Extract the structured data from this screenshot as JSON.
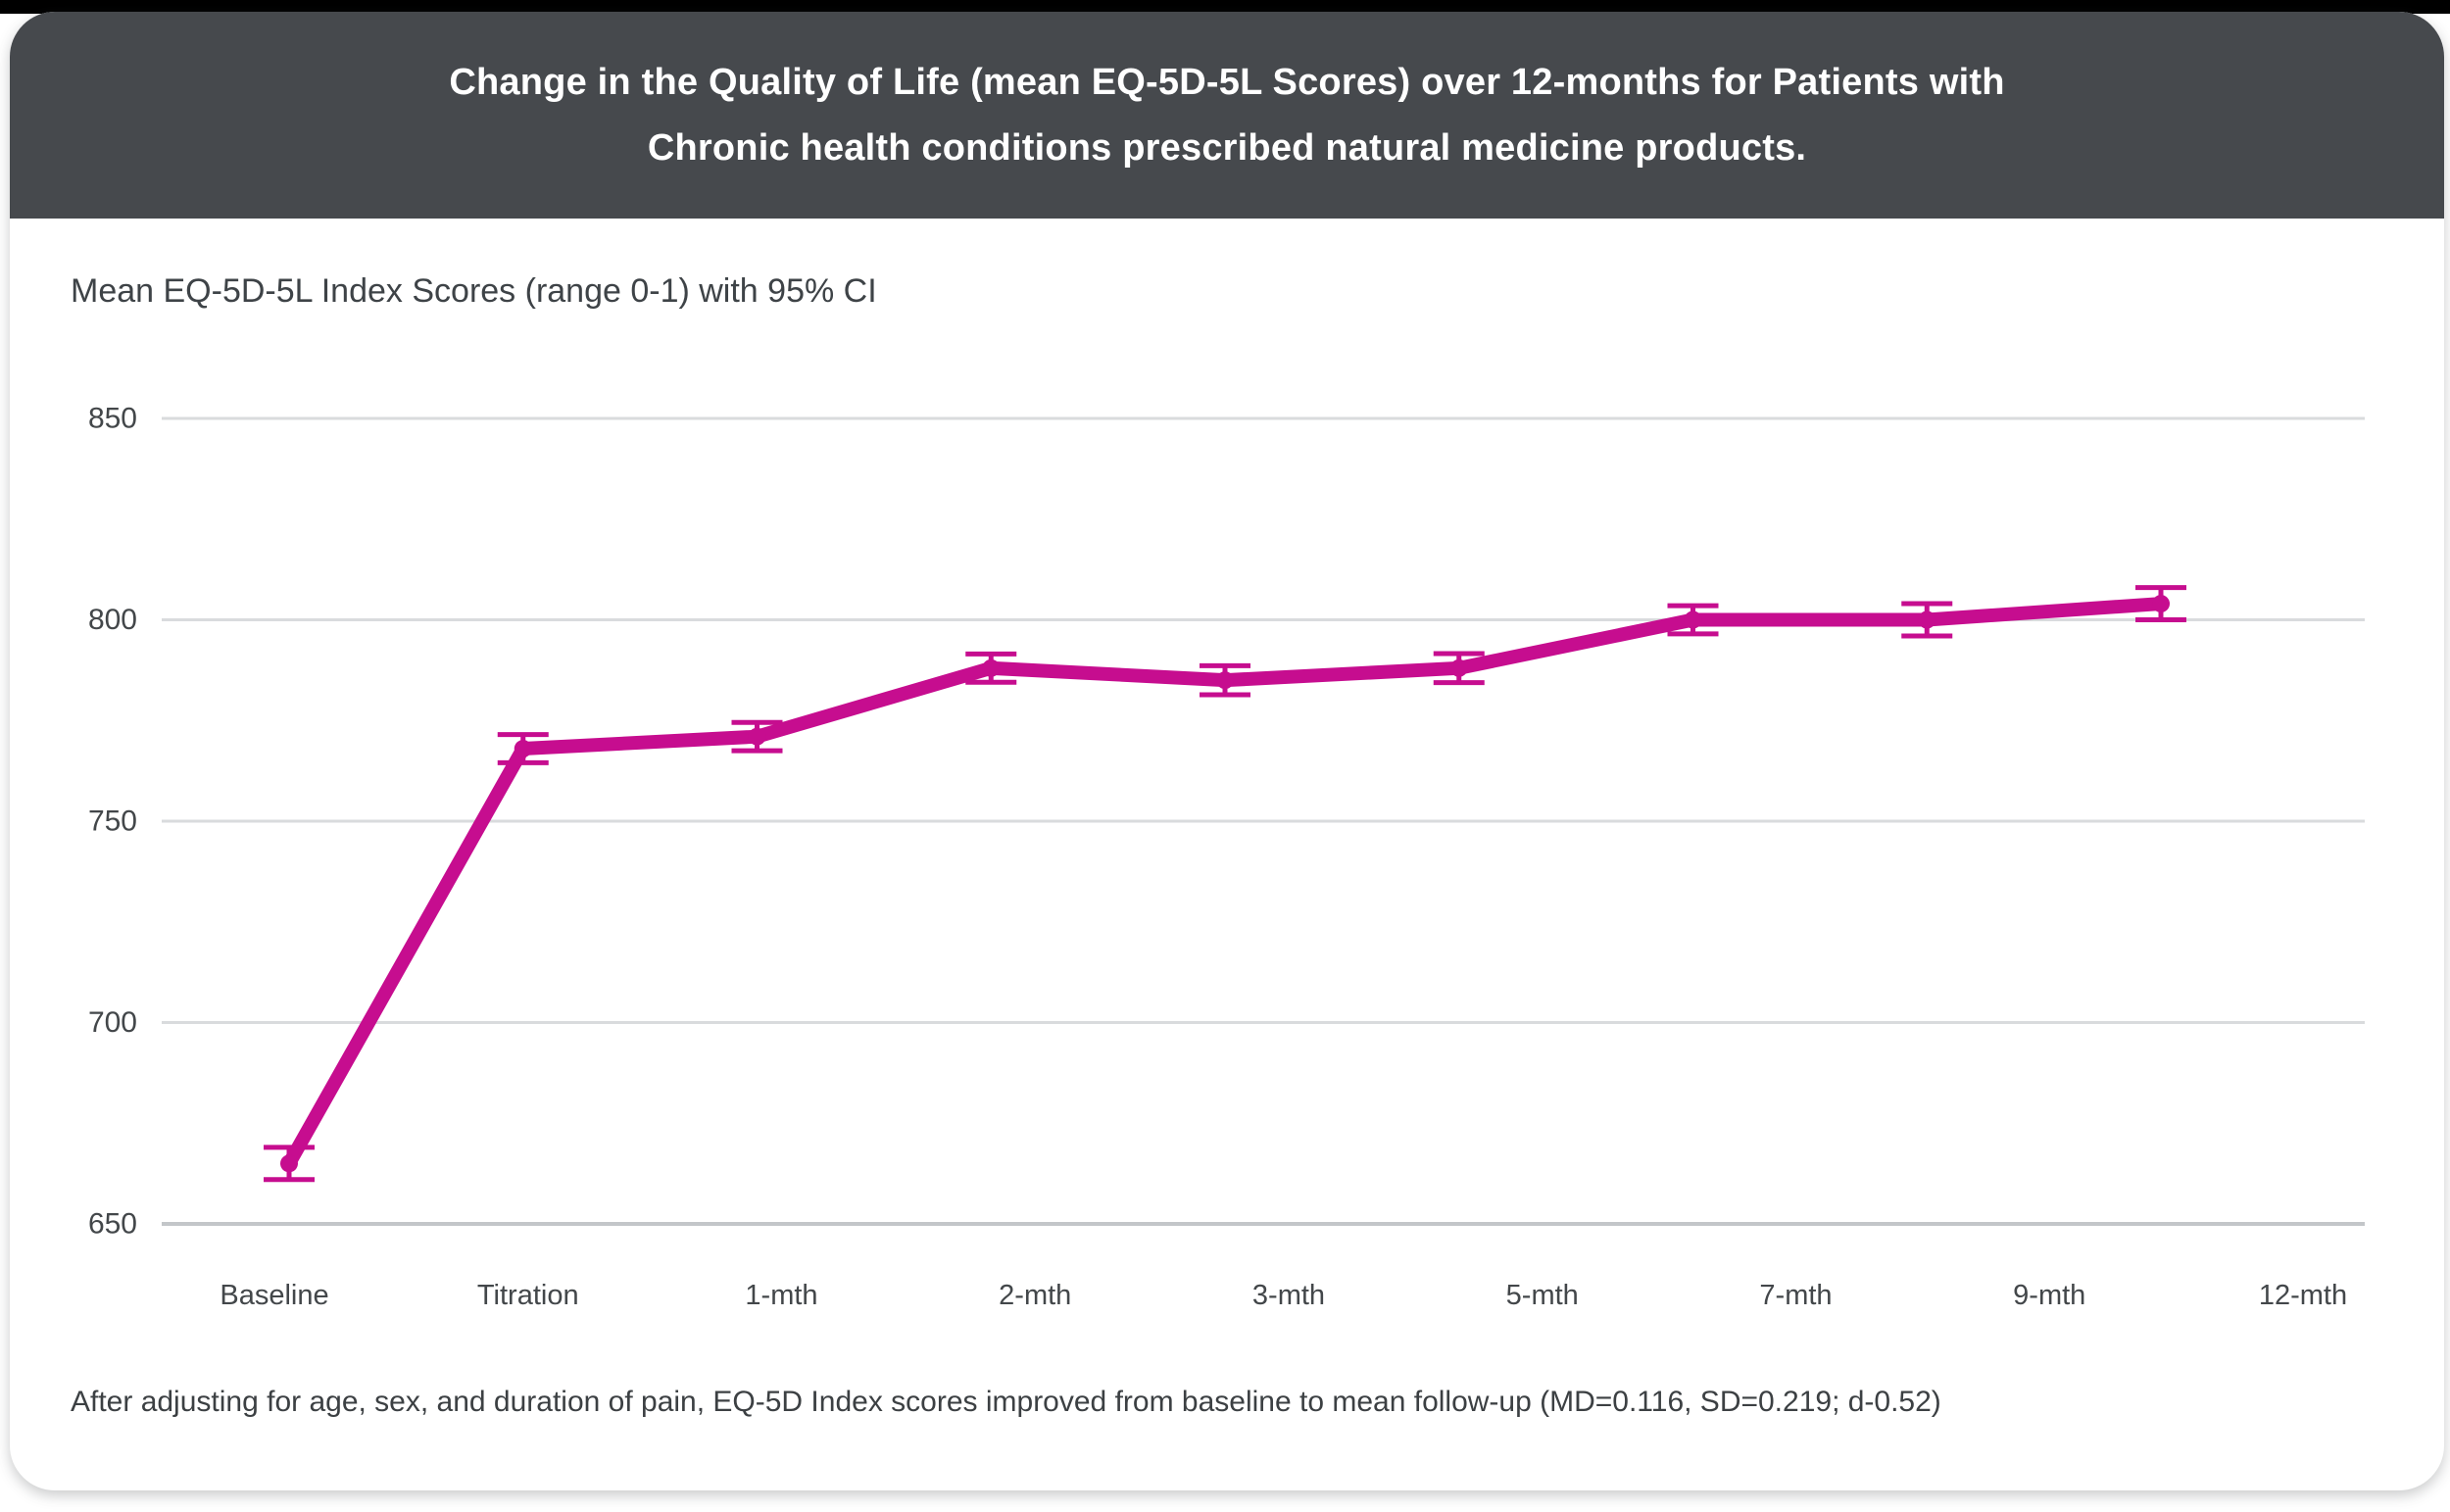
{
  "page": {
    "top_bar_color": "#000000"
  },
  "card": {
    "header": {
      "title_line1": "Change in the Quality of Life (mean EQ-5D-5L Scores) over 12-months for Patients with",
      "title_line2": "Chronic health conditions prescribed natural medicine products.",
      "bg_color": "#46494d",
      "text_color": "#ffffff"
    },
    "subtitle": "Mean EQ-5D-5L Index Scores (range 0-1) with 95% CI",
    "footnote": "After adjusting for age, sex, and duration of pain, EQ-5D Index scores improved from baseline to mean follow-up (MD=0.116, SD=0.219; d-0.52)"
  },
  "chart_data": {
    "type": "line",
    "title": "Change in the Quality of Life (mean EQ-5D-5L Scores) over 12-months for Patients with Chronic health conditions prescribed natural medicine products.",
    "subtitle": "Mean EQ-5D-5L Index Scores (range 0-1) with 95% CI",
    "categories": [
      "Baseline",
      "Titration",
      "1-mth",
      "2-mth",
      "3-mth",
      "5-mth",
      "7-mth",
      "9-mth",
      "12-mth"
    ],
    "series": [
      {
        "name": "Mean EQ-5D-5L Index Score",
        "values": [
          665,
          768,
          771,
          788,
          785,
          788,
          800,
          800,
          804
        ],
        "ci_halfwidths": [
          4,
          3.5,
          3.5,
          3.5,
          3.6,
          3.6,
          3.5,
          4,
          4
        ]
      }
    ],
    "error_bars": "95% CI",
    "yticks": [
      650,
      700,
      750,
      800,
      850
    ],
    "ylim": [
      650,
      850
    ],
    "grid": true,
    "legend_position": "none",
    "line_color": "#c60d8f",
    "gridline_color": "#d9dbdd",
    "axis_line_color": "#c3c6c9",
    "tick_label_color": "#43474a",
    "footnote": "After adjusting for age, sex, and duration of pain, EQ-5D Index scores improved from baseline to mean follow-up (MD=0.116, SD=0.219; d-0.52)"
  }
}
